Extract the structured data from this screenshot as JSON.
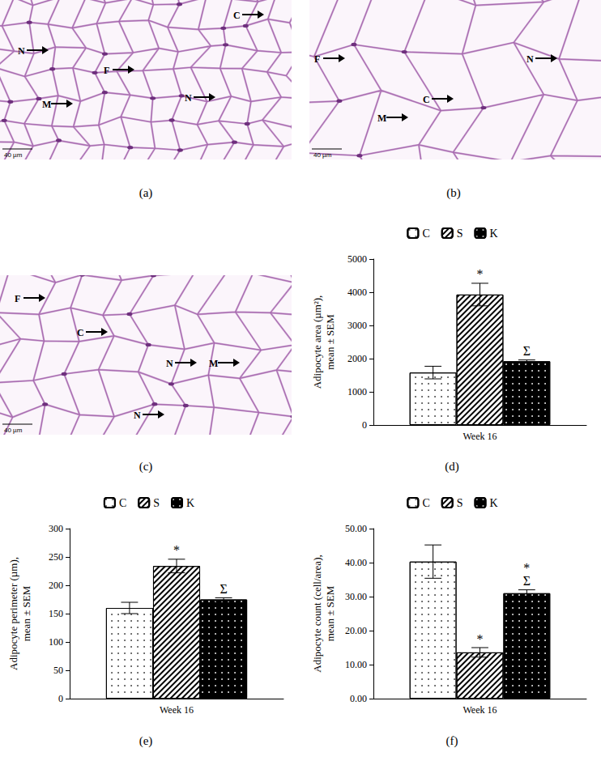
{
  "micrographs": [
    {
      "caption": "(a)",
      "scale_bar": "40 µm",
      "labels": [
        "N",
        "C",
        "F",
        "M",
        "N"
      ]
    },
    {
      "caption": "(b)",
      "scale_bar": "40 µm",
      "labels": [
        "F",
        "N",
        "C",
        "M"
      ]
    },
    {
      "caption": "(c)",
      "scale_bar": "40 µm",
      "labels": [
        "F",
        "C",
        "N",
        "M",
        "N"
      ]
    }
  ],
  "chart_data": [
    {
      "type": "bar",
      "caption": "(d)",
      "categories": [
        "Week 16"
      ],
      "y_label": "Adipocyte area (µm²), mean ± SEM",
      "ylim": [
        0,
        5000
      ],
      "yticks": [
        0,
        1000,
        2000,
        3000,
        4000,
        5000
      ],
      "grid": false,
      "legend": "top",
      "series": [
        {
          "name": "C",
          "color": "#ffffff",
          "marker": "dots",
          "values": [
            1580
          ],
          "errors": [
            190
          ]
        },
        {
          "name": "S",
          "color": "#ffffff",
          "marker": "hatch",
          "values": [
            3930
          ],
          "errors": [
            340
          ]
        },
        {
          "name": "K",
          "color": "#000000",
          "marker": "dots",
          "values": [
            1920
          ],
          "errors": [
            40
          ]
        }
      ],
      "annotations": [
        {
          "series": "S",
          "labels": [
            "*"
          ]
        },
        {
          "series": "K",
          "labels": [
            "Σ"
          ]
        }
      ]
    },
    {
      "type": "bar",
      "caption": "(e)",
      "categories": [
        "Week 16"
      ],
      "y_label": "Adipocyte perimeter (µm), mean ± SEM",
      "ylim": [
        0,
        300
      ],
      "yticks": [
        0,
        50,
        100,
        150,
        200,
        250,
        300
      ],
      "grid": false,
      "legend": "top",
      "series": [
        {
          "name": "C",
          "color": "#ffffff",
          "marker": "dots",
          "values": [
            160
          ],
          "errors": [
            10
          ]
        },
        {
          "name": "S",
          "color": "#ffffff",
          "marker": "hatch",
          "values": [
            234
          ],
          "errors": [
            12
          ]
        },
        {
          "name": "K",
          "color": "#000000",
          "marker": "dots",
          "values": [
            175
          ],
          "errors": [
            3
          ]
        }
      ],
      "annotations": [
        {
          "series": "S",
          "labels": [
            "*"
          ]
        },
        {
          "series": "K",
          "labels": [
            "Σ"
          ]
        }
      ]
    },
    {
      "type": "bar",
      "caption": "(f)",
      "categories": [
        "Week 16"
      ],
      "y_label": "Adipocyte count (cell/area), mean ± SEM",
      "ylim": [
        0,
        50
      ],
      "yticks": [
        {
          "value": 0,
          "label": "0.00"
        },
        {
          "value": 10,
          "label": "10.00"
        },
        {
          "value": 20,
          "label": "20.00"
        },
        {
          "value": 30,
          "label": "30.00"
        },
        {
          "value": 40,
          "label": "40.00"
        },
        {
          "value": 50,
          "label": "50.00"
        }
      ],
      "grid": false,
      "legend": "top",
      "series": [
        {
          "name": "C",
          "color": "#ffffff",
          "marker": "dots",
          "values": [
            40.3
          ],
          "errors": [
            4.9
          ]
        },
        {
          "name": "S",
          "color": "#ffffff",
          "marker": "hatch",
          "values": [
            13.6
          ],
          "errors": [
            1.4
          ]
        },
        {
          "name": "K",
          "color": "#000000",
          "marker": "dots",
          "values": [
            31
          ],
          "errors": [
            1
          ]
        }
      ],
      "annotations": [
        {
          "series": "S",
          "labels": [
            "*"
          ]
        },
        {
          "series": "K",
          "labels": [
            "*",
            "Σ"
          ]
        }
      ]
    }
  ]
}
